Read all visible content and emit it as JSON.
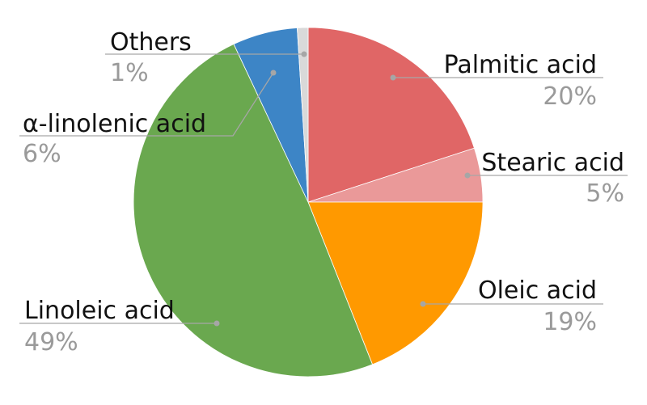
{
  "chart_data": {
    "type": "pie",
    "title": "",
    "slices": [
      {
        "label": "Palmitic acid",
        "value": 20,
        "value_label": "20%",
        "color": "#e06666"
      },
      {
        "label": "Stearic acid",
        "value": 5,
        "value_label": "5%",
        "color": "#ea9999"
      },
      {
        "label": "Oleic acid",
        "value": 19,
        "value_label": "19%",
        "color": "#ff9900"
      },
      {
        "label": "Linoleic acid",
        "value": 49,
        "value_label": "49%",
        "color": "#6aa84f"
      },
      {
        "label": "α-linolenic acid",
        "value": 6,
        "value_label": "6%",
        "color": "#3d85c6"
      },
      {
        "label": "Others",
        "value": 1,
        "value_label": "1%",
        "color": "#d9d9d9"
      }
    ],
    "start": "12 o'clock",
    "direction": "clockwise",
    "legend": "none",
    "labels": "outside with leader lines"
  }
}
